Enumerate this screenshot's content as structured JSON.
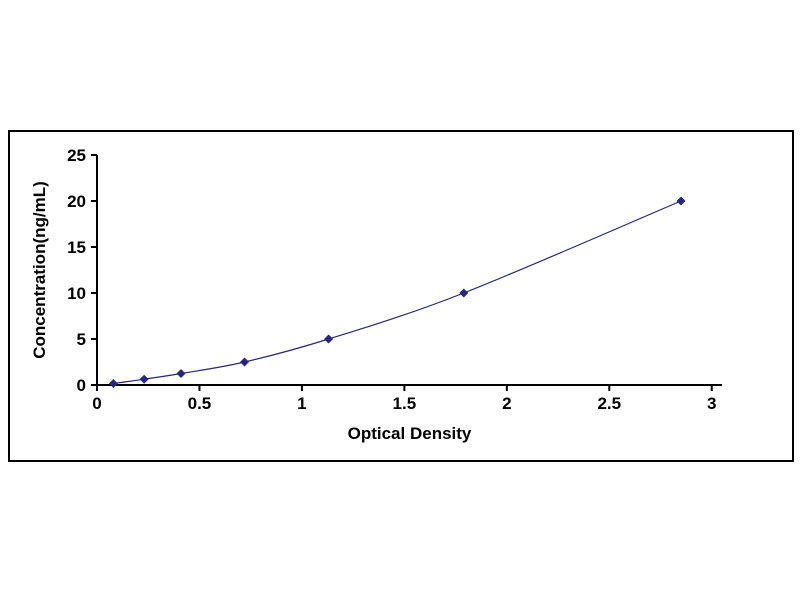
{
  "chart_data": {
    "type": "line",
    "title": "",
    "xlabel": "Optical Density",
    "ylabel": "Concentration(ng/mL)",
    "x": [
      0.08,
      0.23,
      0.41,
      0.72,
      1.13,
      1.79,
      2.85
    ],
    "y": [
      0.16,
      0.63,
      1.25,
      2.5,
      5,
      10,
      20
    ],
    "xlim": [
      0,
      3.05
    ],
    "ylim": [
      0,
      25
    ],
    "x_ticks": [
      0,
      0.5,
      1,
      1.5,
      2,
      2.5,
      3
    ],
    "x_tick_labels": [
      "0",
      "0.5",
      "1",
      "1.5",
      "2",
      "2.5",
      "3"
    ],
    "y_ticks": [
      0,
      5,
      10,
      15,
      20,
      25
    ],
    "y_tick_labels": [
      "0",
      "5",
      "10",
      "15",
      "20",
      "25"
    ],
    "grid": false,
    "legend": "none",
    "marker": "diamond",
    "line_color": "#26267d",
    "marker_color": "#26267d",
    "axis_color": "#000000",
    "text_color": "#000000",
    "frame_border_color": "#000000",
    "background_color": "#ffffff",
    "tick_font_size": 17,
    "label_font_size": 17
  }
}
